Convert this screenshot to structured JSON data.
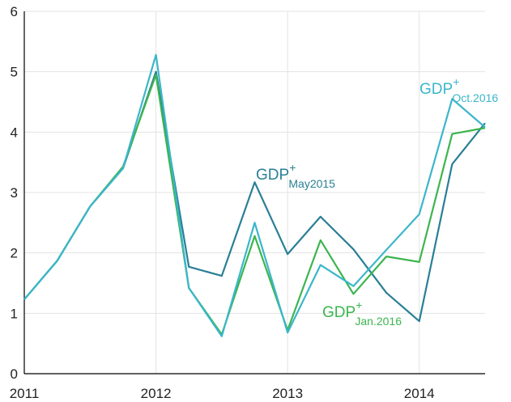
{
  "chart_data": {
    "type": "line",
    "x": [
      2011,
      2011.25,
      2011.5,
      2011.75,
      2012,
      2012.25,
      2012.5,
      2012.75,
      2013,
      2013.25,
      2013.5,
      2013.75,
      2014,
      2014.25,
      2014.5
    ],
    "xlim": [
      2011,
      2014.5
    ],
    "xticks": [
      2011,
      2012,
      2013,
      2014
    ],
    "ylim": [
      0,
      6
    ],
    "yticks": [
      0,
      1,
      2,
      3,
      4,
      5,
      6
    ],
    "grid": true,
    "series": [
      {
        "name": "May2015",
        "color": "#2a7f96",
        "values": [
          1.23,
          1.87,
          2.77,
          3.4,
          5.0,
          1.77,
          1.62,
          3.17,
          1.98,
          2.6,
          2.06,
          1.34,
          0.87,
          3.47,
          4.15
        ]
      },
      {
        "name": "Jan.2016",
        "color": "#3cb54f",
        "values": [
          1.23,
          1.87,
          2.77,
          3.43,
          4.95,
          1.42,
          0.65,
          2.28,
          0.72,
          2.21,
          1.32,
          1.94,
          1.85,
          3.97,
          4.07
        ]
      },
      {
        "name": "Oct.2016",
        "color": "#3bb6cb",
        "values": [
          1.23,
          1.87,
          2.77,
          3.4,
          5.28,
          1.42,
          0.62,
          2.5,
          0.68,
          1.8,
          1.45,
          2.05,
          2.64,
          4.55,
          4.08
        ]
      }
    ],
    "annotations": [
      {
        "text": "GDP",
        "sup": "+",
        "sub": "May2015"
      },
      {
        "text": "GDP",
        "sup": "+",
        "sub": "Jan.2016"
      },
      {
        "text": "GDP",
        "sup": "+",
        "sub": "Oct.2016"
      }
    ]
  }
}
